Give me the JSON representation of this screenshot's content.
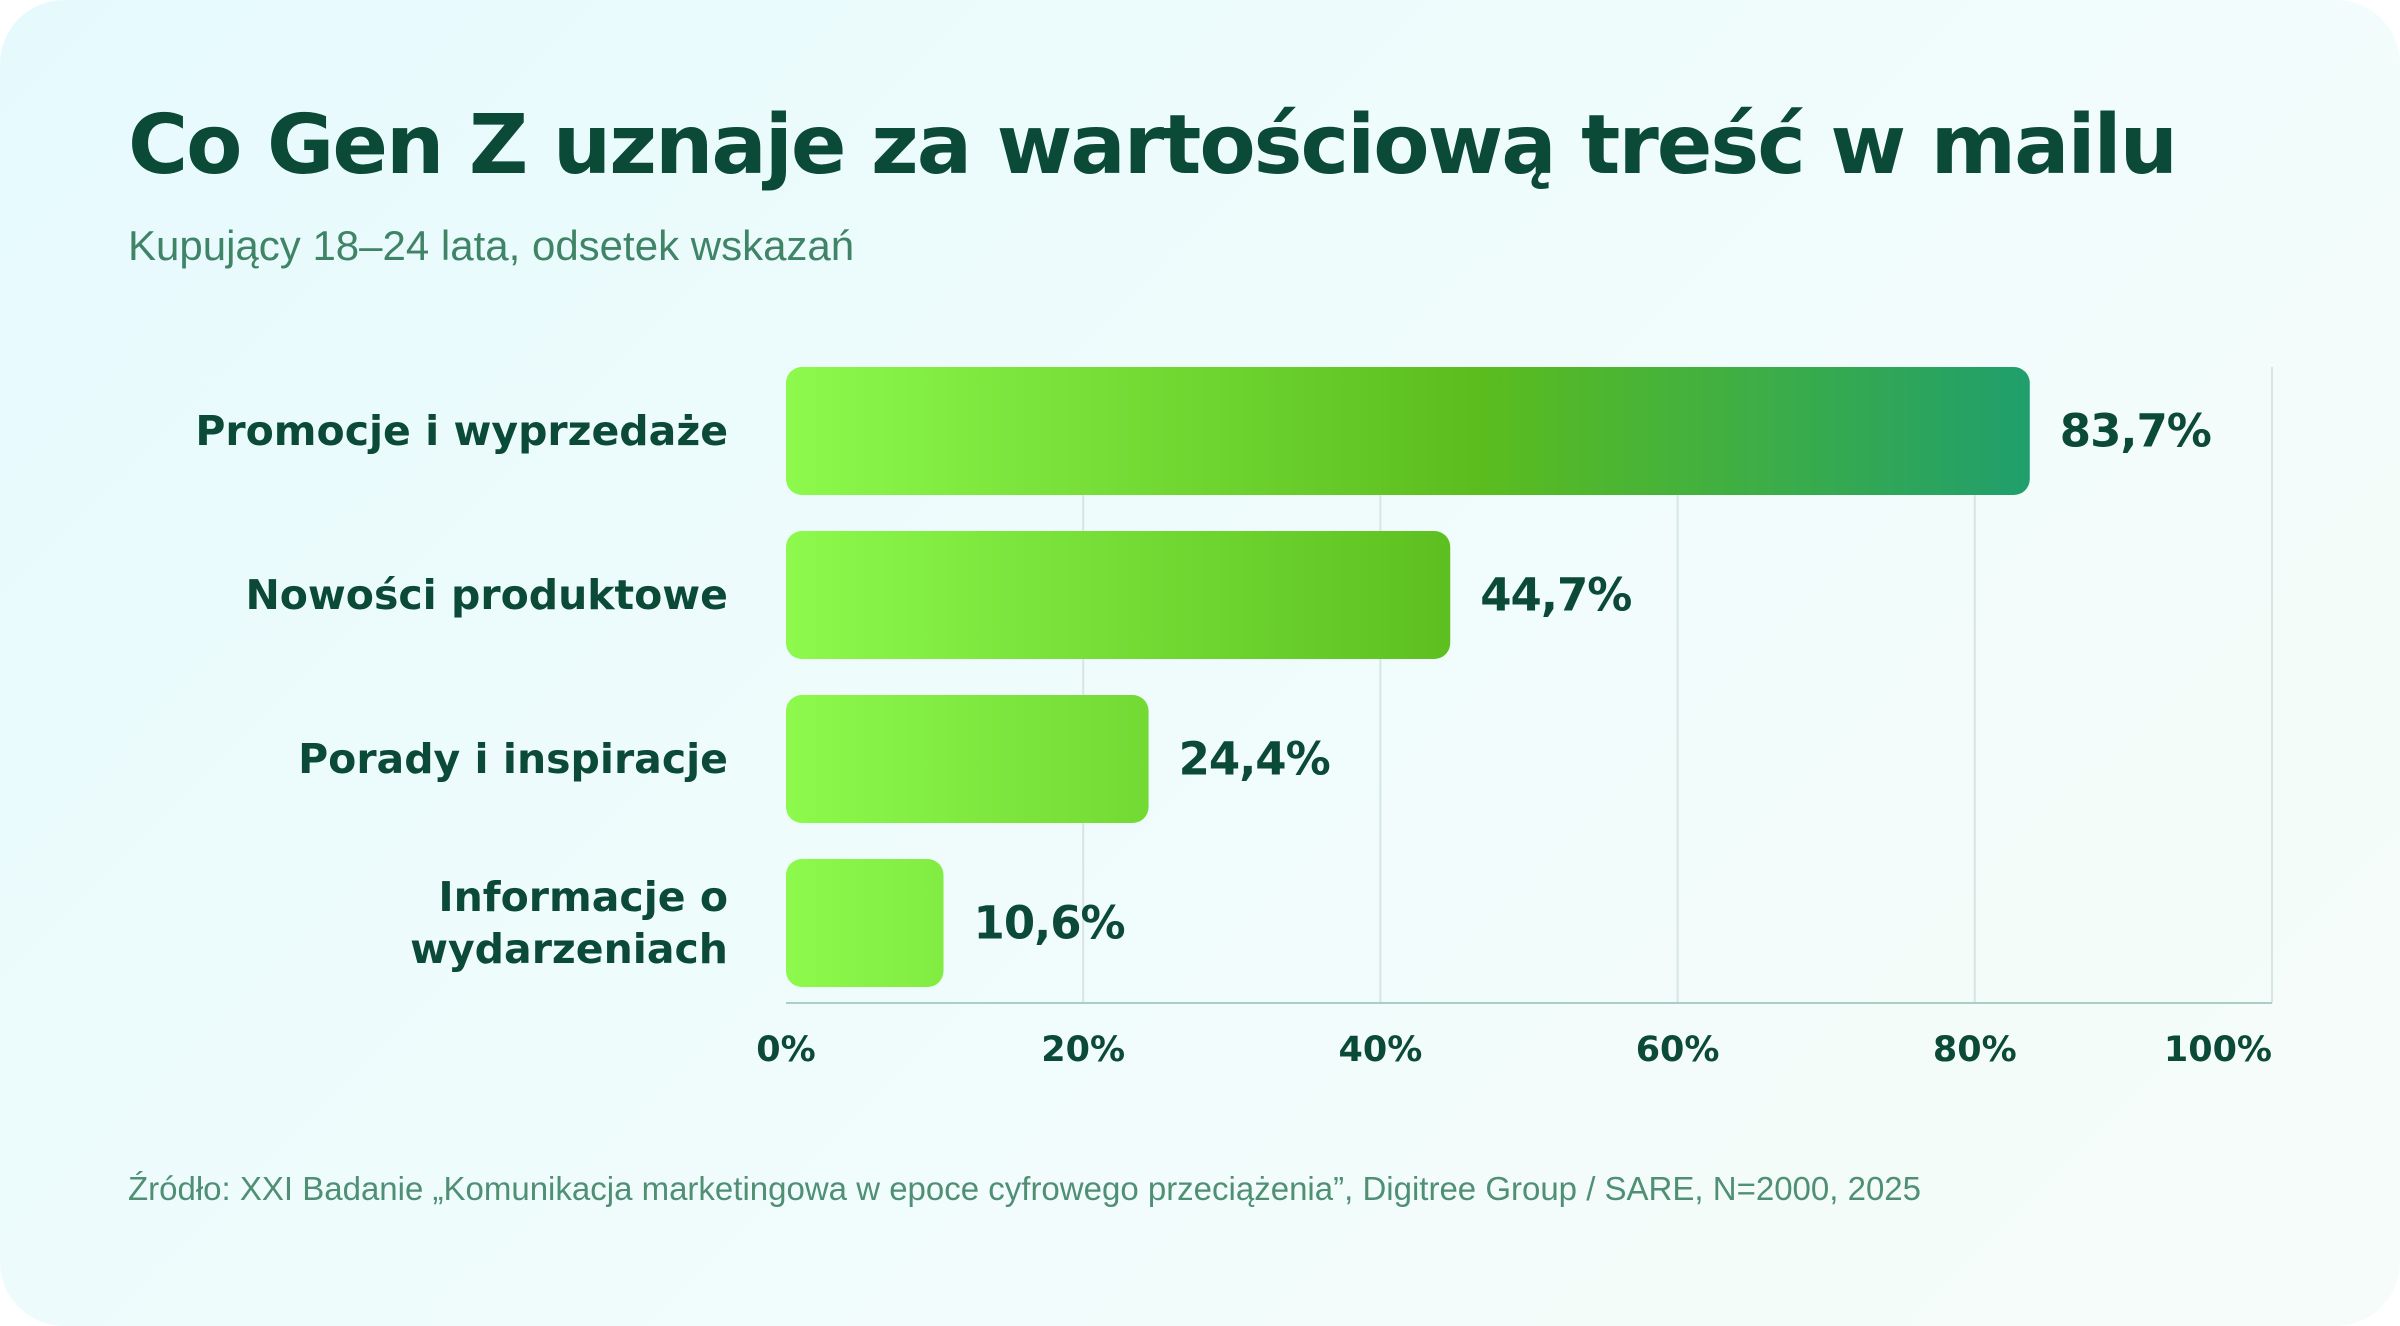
{
  "header": {
    "title": "Co Gen Z uznaje za wartościową treść w mailu",
    "subtitle": "Kupujący 18–24 lata, odsetek wskazań"
  },
  "footer": {
    "source": "Źródło: XXI Badanie „Komunikacja marketingowa w epoce cyfrowego przeciążenia”, Digitree Group / SARE, N=2000, 2025"
  },
  "colors": {
    "title": "#0b4a36",
    "bar_start": "#8cf94c",
    "bar_mid": "#5bbd1e",
    "bar_end": "#1f9e6e",
    "grid": "#d6e6e4",
    "axis": "#a9cfc8"
  },
  "chart_data": {
    "type": "bar",
    "orientation": "horizontal",
    "title": "Co Gen Z uznaje za wartościową treść w mailu",
    "subtitle": "Kupujący 18–24 lata, odsetek wskazań",
    "categories": [
      [
        "Promocje i wyprzedaże"
      ],
      [
        "Nowości produktowe"
      ],
      [
        "Porady i inspiracje"
      ],
      [
        "Informacje o",
        "wydarzeniach"
      ]
    ],
    "values": [
      83.7,
      44.7,
      24.4,
      10.6
    ],
    "value_labels": [
      "83,7%",
      "44,7%",
      "24,4%",
      "10,6%"
    ],
    "xlim": [
      0,
      100
    ],
    "xticks": [
      0,
      20,
      40,
      60,
      80,
      100
    ],
    "xtick_labels": [
      "0%",
      "20%",
      "40%",
      "60%",
      "80%",
      "100%"
    ],
    "grid": "vertical",
    "legend": "none"
  }
}
